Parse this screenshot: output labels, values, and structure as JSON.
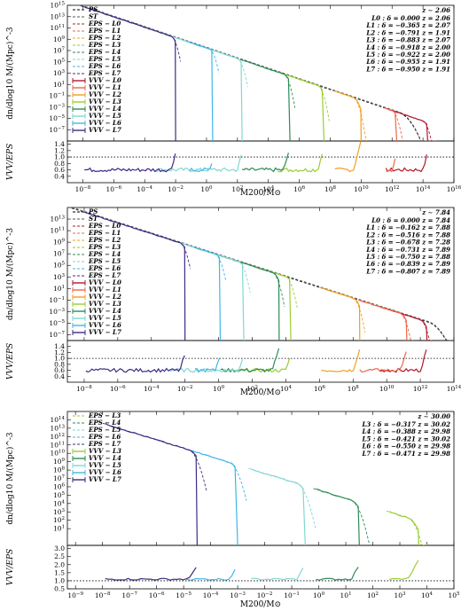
{
  "colors": {
    "PS": "#000000",
    "ST": "#555555",
    "L0": "#b2182b",
    "L1": "#ef6548",
    "L2": "#f0a020",
    "L3": "#9acd32",
    "L4": "#2e8b57",
    "L5": "#7fd7d2",
    "L6": "#41b6e6",
    "L7": "#3f2a85"
  },
  "chart_data": [
    {
      "type": "line",
      "panel": "z ~ 2.06",
      "xlabel": "M200/M⊙",
      "ylabel_top": "dn/dlog10 M/(Mpc)^-3",
      "ylabel_bottom": "VVV/EPS",
      "xlog": true,
      "xlim": [
        1e-09,
        1e+16
      ],
      "xticks": [
        "10^-8",
        "10^-6",
        "10^-4",
        "10^-2",
        "10^0",
        "10^2",
        "10^4",
        "10^6",
        "10^8",
        "10^10",
        "10^12",
        "10^14",
        "10^16"
      ],
      "ylim_top": [
        1e-09,
        1000000000000000.0
      ],
      "yticks_top": [
        "10^-7",
        "10^-5",
        "10^-3",
        "10^-1",
        "10^1",
        "10^3",
        "10^5",
        "10^7",
        "10^9",
        "10^11",
        "10^13",
        "10^15"
      ],
      "ylim_bottom": [
        0.2,
        1.5
      ],
      "yticks_bottom": [
        "0.4",
        "0.6",
        "0.8",
        "1.0",
        "1.2",
        "1.4"
      ],
      "ref_ratio": 1.0,
      "legend": [
        "PS",
        "ST",
        "EPS − L0",
        "EPS − L1",
        "EPS − L2",
        "EPS − L3",
        "EPS − L4",
        "EPS − L5",
        "EPS − L6",
        "EPS − L7",
        "VVV − L0",
        "VVV − L1",
        "VVV − L2",
        "VVV − L3",
        "VVV − L4",
        "VVV − L5",
        "VVV − L6",
        "VVV − L7"
      ],
      "info_head": "z ∼ 2.06",
      "info": [
        "L0 : δ = 0.000   z = 2.06",
        "L1 : δ = −0.365   z = 2.07",
        "L2 : δ = −0.791   z = 1.91",
        "L3 : δ = −0.883   z = 2.07",
        "L4 : δ = −0.918   z = 2.00",
        "L5 : δ = −0.922   z = 2.00",
        "L6 : δ = −0.955   z = 1.91",
        "L7 : δ = −0.950   z = 1.91"
      ],
      "ps_line": {
        "x0": -8,
        "y0": 14.8,
        "slope": -0.92
      },
      "series": [
        {
          "level": "L0",
          "start": 11.5,
          "cut": 14.3,
          "eps_off": 14.0,
          "vvv_mmin": 11.6
        },
        {
          "level": "L1",
          "start": 11.5,
          "cut": 12.3,
          "eps_off": 12.0,
          "vvv_mmin": 11.6
        },
        {
          "level": "L2",
          "start": 8.2,
          "cut": 10.0,
          "eps_off": 9.5,
          "vvv_mmin": 8.3
        },
        {
          "level": "L3",
          "start": 4.5,
          "cut": 7.6,
          "eps_off": 7.2,
          "vvv_mmin": 4.6
        },
        {
          "level": "L4",
          "start": 2.2,
          "cut": 5.4,
          "eps_off": 5.0,
          "vvv_mmin": 2.3
        },
        {
          "level": "L5",
          "start": -3.5,
          "cut": 2.3,
          "eps_off": 2.0,
          "vvv_mmin": -3.4
        },
        {
          "level": "L6",
          "start": -1.2,
          "cut": 0.4,
          "eps_off": 0.2,
          "vvv_mmin": -1.1
        },
        {
          "level": "L7",
          "start": -8.0,
          "cut": -2.0,
          "eps_off": -2.3,
          "vvv_mmin": -7.9
        }
      ]
    },
    {
      "type": "line",
      "panel": "z ~ 7.84",
      "xlabel": "M200/M⊙",
      "ylabel_top": "dn/dlog10 M/(Mpc)^-3",
      "ylabel_bottom": "VVV/EPS",
      "xlog": true,
      "xlim": [
        1e-09,
        100000000000000.0
      ],
      "xticks": [
        "10^-8",
        "10^-6",
        "10^-4",
        "10^-2",
        "10^0",
        "10^2",
        "10^4",
        "10^6",
        "10^8",
        "10^10",
        "10^12",
        "10^14"
      ],
      "ylim_top": [
        1e-08,
        1000000000000000.0
      ],
      "yticks_top": [
        "10^-7",
        "10^-5",
        "10^-3",
        "10^-1",
        "10^1",
        "10^3",
        "10^5",
        "10^7",
        "10^9",
        "10^11",
        "10^13"
      ],
      "ylim_bottom": [
        0.2,
        1.6
      ],
      "yticks_bottom": [
        "0.4",
        "0.6",
        "0.8",
        "1.0",
        "1.2",
        "1.4"
      ],
      "ref_ratio": 1.0,
      "legend": [
        "PS",
        "ST",
        "EPS − L0",
        "EPS − L1",
        "EPS − L2",
        "EPS − L3",
        "EPS − L4",
        "EPS − L5",
        "EPS − L6",
        "EPS − L7",
        "VVV − L0",
        "VVV − L1",
        "VVV − L2",
        "VVV − L3",
        "VVV − L4",
        "VVV − L5",
        "VVV − L6",
        "VVV − L7"
      ],
      "info_head": "z ∼ 7.84",
      "info": [
        "L0 : δ = 0.000   z = 7.84",
        "L1 : δ = −0.162   z = 7.88",
        "L2 : δ = −0.516   z = 7.88",
        "L3 : δ = −0.678   z = 7.28",
        "L4 : δ = −0.731   z = 7.89",
        "L5 : δ = −0.750   z = 7.88",
        "L6 : δ = −0.839   z = 7.89",
        "L7 : δ = −0.807   z = 7.89"
      ],
      "ps_line": {
        "x0": -8,
        "y0": 14.2,
        "slope": -0.93
      },
      "series": [
        {
          "level": "L0",
          "start": 9.5,
          "cut": 12.4,
          "eps_off": 12.0,
          "vvv_mmin": 9.6
        },
        {
          "level": "L1",
          "start": 8.3,
          "cut": 11.2,
          "eps_off": 10.8,
          "vvv_mmin": 8.4
        },
        {
          "level": "L2",
          "start": 6.0,
          "cut": 8.4,
          "eps_off": 8.0,
          "vvv_mmin": 6.1
        },
        {
          "level": "L3",
          "start": 1.0,
          "cut": 4.3,
          "eps_off": 4.0,
          "vvv_mmin": 1.1
        },
        {
          "level": "L4",
          "start": 0.0,
          "cut": 3.6,
          "eps_off": 3.2,
          "vvv_mmin": 0.1
        },
        {
          "level": "L5",
          "start": -3.0,
          "cut": 1.5,
          "eps_off": 1.2,
          "vvv_mmin": -2.9
        },
        {
          "level": "L6",
          "start": -1.5,
          "cut": 0.1,
          "eps_off": -0.2,
          "vvv_mmin": -1.4
        },
        {
          "level": "L7",
          "start": -8.0,
          "cut": -2.0,
          "eps_off": -2.3,
          "vvv_mmin": -7.9
        }
      ]
    },
    {
      "type": "line",
      "panel": "z ~ 30.00",
      "xlabel": "M200/M⊙",
      "ylabel_top": "dn/dlog10 M/(Mpc)^-3",
      "ylabel_bottom": "VVV/EPS",
      "xlog": true,
      "xlim": [
        5e-10,
        100000.0
      ],
      "xticks": [
        "10^-9",
        "10^-8",
        "10^-7",
        "10^-6",
        "10^-5",
        "10^-4",
        "10^-3",
        "10^-2",
        "10^-1",
        "10^0",
        "10^1",
        "10^2",
        "10^3",
        "10^4",
        "10^5"
      ],
      "ylim_top": [
        0.1,
        1000000000000000.0
      ],
      "yticks_top": [
        "10^1",
        "10^2",
        "10^3",
        "10^4",
        "10^5",
        "10^6",
        "10^7",
        "10^8",
        "10^9",
        "10^10",
        "10^11",
        "10^12",
        "10^13",
        "10^14"
      ],
      "ylim_bottom": [
        0.5,
        3.2
      ],
      "yticks_bottom": [
        "0.5",
        "1.0",
        "1.5",
        "2.0",
        "2.5",
        "3.0"
      ],
      "ref_ratio": 1.0,
      "legend": [
        "EPS − L3",
        "EPS − L4",
        "EPS − L5",
        "EPS − L6",
        "EPS − L7",
        "VVV − L3",
        "VVV − L4",
        "VVV − L5",
        "VVV − L6",
        "VVV − L7"
      ],
      "info_head": "z ∼ 30.00",
      "info": [
        "L3 : δ = −0.317   z = 30.02",
        "L4 : δ = −0.388   z = 29.98",
        "L5 : δ = −0.421   z = 30.02",
        "L6 : δ = −0.550   z = 29.98",
        "L7 : δ = −0.471   z = 29.98"
      ],
      "ps_line": {
        "x0": -8,
        "y0": 13.6,
        "slope": -1.0
      },
      "series": [
        {
          "level": "L3",
          "start": 2.5,
          "cut": 3.7,
          "eps_off": 3.3,
          "vvv_mmin": 2.6
        },
        {
          "level": "L4",
          "start": -0.2,
          "cut": 1.5,
          "eps_off": 1.2,
          "vvv_mmin": -0.1
        },
        {
          "level": "L5",
          "start": -2.6,
          "cut": -0.5,
          "eps_off": -0.8,
          "vvv_mmin": -2.5
        },
        {
          "level": "L6",
          "start": -5.0,
          "cut": -3.0,
          "eps_off": -3.3,
          "vvv_mmin": -4.9
        },
        {
          "level": "L7",
          "start": -8.0,
          "cut": -4.5,
          "eps_off": -4.8,
          "vvv_mmin": -7.9
        }
      ]
    }
  ]
}
